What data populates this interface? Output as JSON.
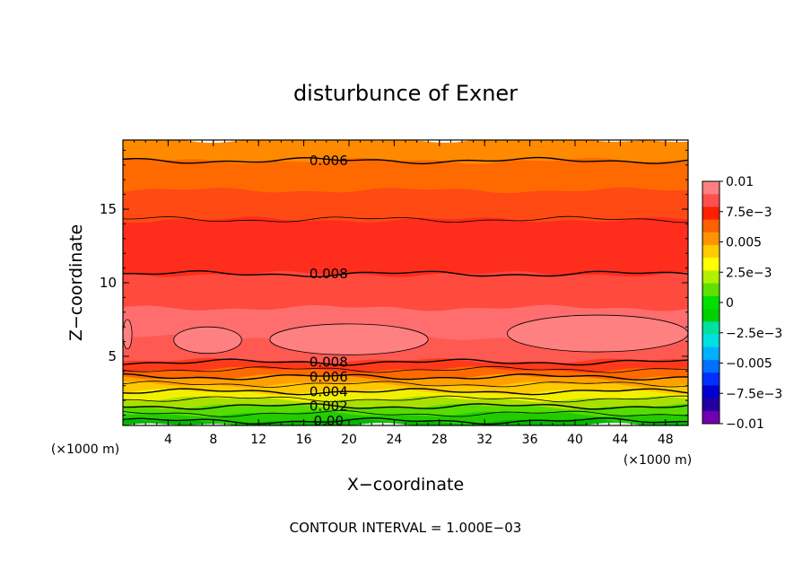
{
  "chart_data": {
    "type": "heatmap",
    "title": "disturbunce of Exner",
    "xlabel": "X−coordinate",
    "ylabel": "Z−coordinate",
    "x_unit_left": "(×1000 m)",
    "x_unit_right": "(×1000 m)",
    "footer": "CONTOUR INTERVAL = 1.000E−03",
    "xlim": [
      0,
      50
    ],
    "ylim": [
      0.3,
      19.7
    ],
    "x_ticks": [
      4,
      8,
      12,
      16,
      20,
      24,
      28,
      32,
      36,
      40,
      44,
      48
    ],
    "y_ticks": [
      5,
      10,
      15
    ],
    "bands": [
      {
        "z0": 0.3,
        "z1": 0.6,
        "color": "#00b800"
      },
      {
        "z0": 0.6,
        "z1": 1.1,
        "color": "#22cc00"
      },
      {
        "z0": 1.1,
        "z1": 1.6,
        "color": "#55dd00"
      },
      {
        "z0": 1.6,
        "z1": 2.1,
        "color": "#a8e000"
      },
      {
        "z0": 2.1,
        "z1": 2.6,
        "color": "#f2f000"
      },
      {
        "z0": 2.6,
        "z1": 3.1,
        "color": "#ffc800"
      },
      {
        "z0": 3.1,
        "z1": 3.6,
        "color": "#ffa000"
      },
      {
        "z0": 3.6,
        "z1": 4.1,
        "color": "#ff6a00"
      },
      {
        "z0": 4.1,
        "z1": 4.7,
        "color": "#ff3a1a"
      },
      {
        "z0": 4.7,
        "z1": 6.3,
        "color": "#ff5a52"
      },
      {
        "z0": 6.3,
        "z1": 8.3,
        "color": "#ff6e6e"
      },
      {
        "z0": 8.3,
        "z1": 10.6,
        "color": "#ff4a3e"
      },
      {
        "z0": 10.6,
        "z1": 14.3,
        "color": "#ff2d1c"
      },
      {
        "z0": 14.3,
        "z1": 16.3,
        "color": "#ff4a14"
      },
      {
        "z0": 16.3,
        "z1": 18.3,
        "color": "#ff6a00"
      },
      {
        "z0": 18.3,
        "z1": 19.7,
        "color": "#ff8a00"
      }
    ],
    "contour_levels": [
      {
        "z": 0.6,
        "label": "0.00"
      },
      {
        "z": 1.1,
        "label": ""
      },
      {
        "z": 1.6,
        "label": "0.002"
      },
      {
        "z": 2.1,
        "label": ""
      },
      {
        "z": 2.6,
        "label": "0.004"
      },
      {
        "z": 3.1,
        "label": ""
      },
      {
        "z": 3.6,
        "label": "0.006"
      },
      {
        "z": 4.1,
        "label": ""
      },
      {
        "z": 4.6,
        "label": "0.008"
      },
      {
        "z": 10.6,
        "label": "0.008"
      },
      {
        "z": 14.3,
        "label": ""
      },
      {
        "z": 18.3,
        "label": "0.006"
      }
    ],
    "high_cells": [
      {
        "x0": 4.5,
        "x1": 10.5,
        "z0": 5.2,
        "z1": 7.0
      },
      {
        "x0": 13.0,
        "x1": 27.0,
        "z0": 5.1,
        "z1": 7.2
      },
      {
        "x0": 34.0,
        "x1": 50.0,
        "z0": 5.3,
        "z1": 7.8
      },
      {
        "x0": 0.0,
        "x1": 0.8,
        "z0": 5.5,
        "z1": 7.5
      }
    ],
    "colorbar": {
      "labels": [
        "0.01",
        "7.5e−3",
        "0.005",
        "2.5e−3",
        "0",
        "−2.5e−3",
        "−0.005",
        "−7.5e−3",
        "−0.01"
      ],
      "colors": [
        "#ff8080",
        "#ff5050",
        "#ff2000",
        "#ff6000",
        "#ff9400",
        "#ffcc00",
        "#ffff00",
        "#b0f000",
        "#60e000",
        "#00e000",
        "#00d000",
        "#00e0a0",
        "#00e0e0",
        "#00b0ff",
        "#0070ff",
        "#0030ff",
        "#0000d0",
        "#2000a0",
        "#7000b0"
      ]
    }
  }
}
